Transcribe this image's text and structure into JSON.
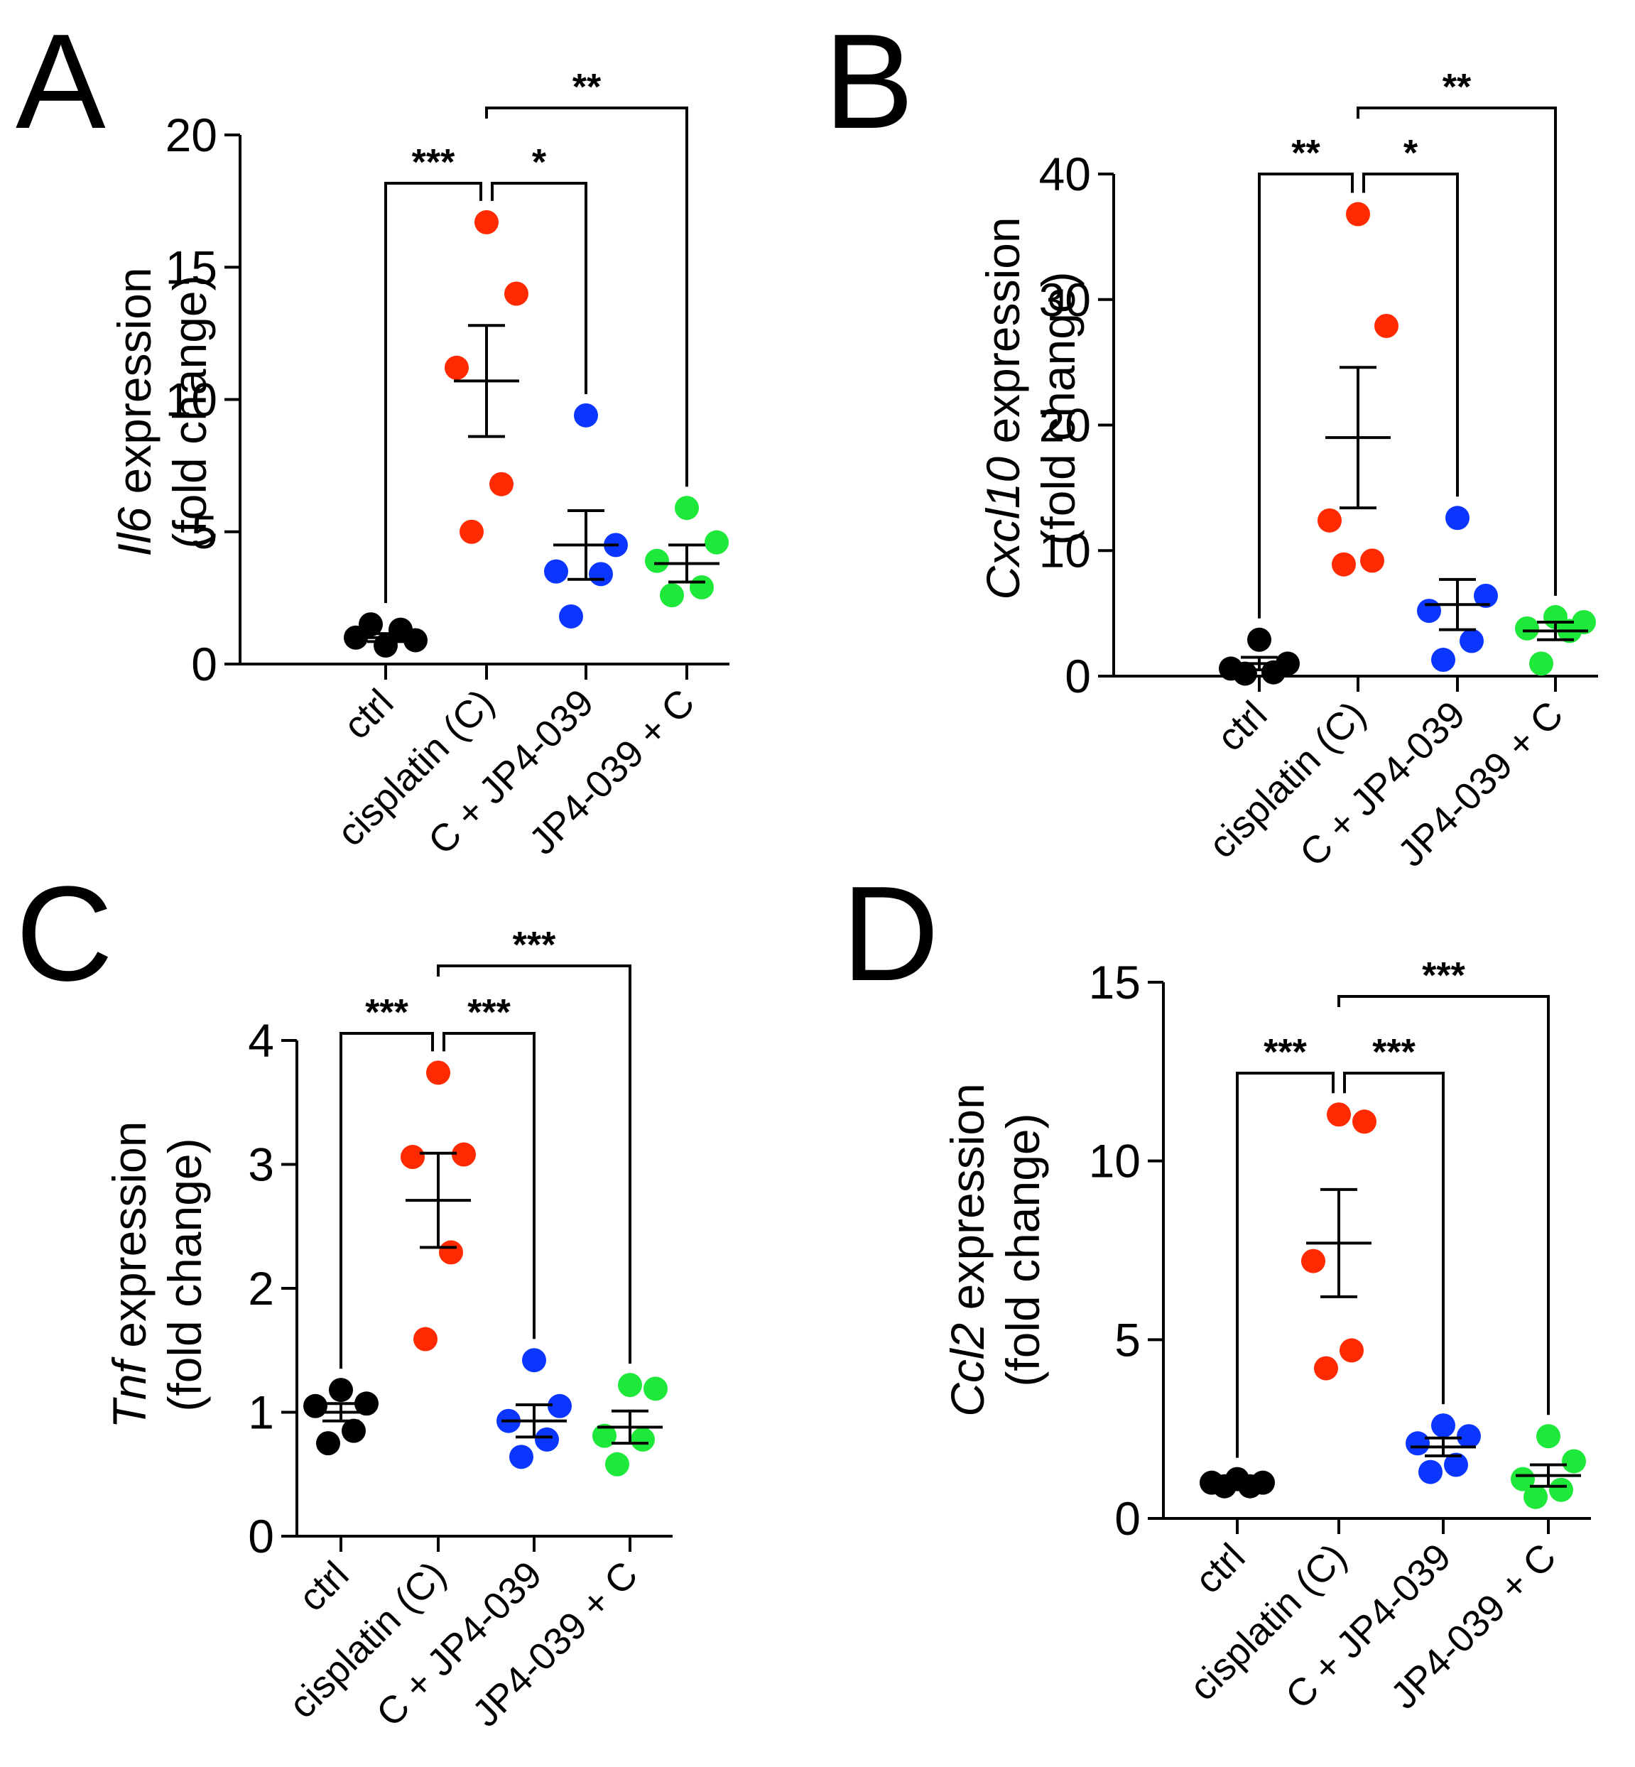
{
  "figure": {
    "panels": [
      "A",
      "B",
      "C",
      "D"
    ]
  },
  "colors": {
    "ctrl": "#000000",
    "cisplatin (C)": "#ff2a00",
    "C + JP4-039": "#0a36ff",
    "JP4-039 + C": "#1ee83a"
  },
  "chart_data": [
    {
      "panel": "A",
      "type": "scatter",
      "ylabel_gene": "Il6",
      "ylabel_rest": "expression",
      "ylabel_line2": "(fold change)",
      "ylim": [
        0,
        20
      ],
      "yticks": [
        0,
        5,
        10,
        15,
        20
      ],
      "categories": [
        "ctrl",
        "cisplatin (C)",
        "C + JP4-039",
        "JP4-039 + C"
      ],
      "groups": [
        {
          "name": "ctrl",
          "points": [
            0.7,
            0.9,
            1.0,
            1.3,
            1.5
          ],
          "mean": 1.0,
          "sem": 0.15
        },
        {
          "name": "cisplatin (C)",
          "points": [
            16.7,
            14.0,
            11.2,
            6.8,
            5.0
          ],
          "mean": 10.7,
          "sem": 2.1
        },
        {
          "name": "C + JP4-039",
          "points": [
            9.4,
            4.5,
            3.5,
            3.4,
            1.8
          ],
          "mean": 4.5,
          "sem": 1.3
        },
        {
          "name": "JP4-039 + C",
          "points": [
            5.9,
            4.6,
            3.9,
            2.9,
            2.6
          ],
          "mean": 3.8,
          "sem": 0.7
        }
      ],
      "comparisons": [
        {
          "from": "ctrl",
          "to": "cisplatin (C)",
          "label": "***"
        },
        {
          "from": "cisplatin (C)",
          "to": "C + JP4-039",
          "label": "*"
        },
        {
          "from": "cisplatin (C)",
          "to": "JP4-039 + C",
          "label": "**"
        }
      ]
    },
    {
      "panel": "B",
      "type": "scatter",
      "ylabel_gene": "Cxcl10",
      "ylabel_rest": "expression",
      "ylabel_line2": "(fold change)",
      "ylim": [
        0,
        40
      ],
      "yticks": [
        0,
        10,
        20,
        30,
        40
      ],
      "categories": [
        "ctrl",
        "cisplatin (C)",
        "C + JP4-039",
        "JP4-039 + C"
      ],
      "groups": [
        {
          "name": "ctrl",
          "points": [
            2.9,
            1.0,
            0.6,
            0.3,
            0.2
          ],
          "mean": 1.0,
          "sem": 0.5
        },
        {
          "name": "cisplatin (C)",
          "points": [
            36.8,
            27.9,
            12.4,
            9.2,
            8.9
          ],
          "mean": 19.0,
          "sem": 5.6
        },
        {
          "name": "C + JP4-039",
          "points": [
            12.6,
            6.4,
            5.2,
            2.8,
            1.3
          ],
          "mean": 5.7,
          "sem": 2.0
        },
        {
          "name": "JP4-039 + C",
          "points": [
            4.7,
            4.3,
            3.8,
            3.6,
            1.0
          ],
          "mean": 3.6,
          "sem": 0.7
        }
      ],
      "comparisons": [
        {
          "from": "ctrl",
          "to": "cisplatin (C)",
          "label": "**"
        },
        {
          "from": "cisplatin (C)",
          "to": "C + JP4-039",
          "label": "*"
        },
        {
          "from": "cisplatin (C)",
          "to": "JP4-039 + C",
          "label": "**"
        }
      ]
    },
    {
      "panel": "C",
      "type": "scatter",
      "ylabel_gene": "Tnf",
      "ylabel_rest": "expression",
      "ylabel_line2": "(fold change)",
      "ylim": [
        0,
        4
      ],
      "yticks": [
        0,
        1,
        2,
        3,
        4
      ],
      "categories": [
        "ctrl",
        "cisplatin (C)",
        "C + JP4-039",
        "JP4-039 + C"
      ],
      "groups": [
        {
          "name": "ctrl",
          "points": [
            1.18,
            1.07,
            1.05,
            0.85,
            0.75
          ],
          "mean": 1.0,
          "sem": 0.07
        },
        {
          "name": "cisplatin (C)",
          "points": [
            3.74,
            3.08,
            3.06,
            2.29,
            1.59
          ],
          "mean": 2.71,
          "sem": 0.38
        },
        {
          "name": "C + JP4-039",
          "points": [
            1.42,
            1.05,
            0.93,
            0.78,
            0.64
          ],
          "mean": 0.93,
          "sem": 0.13
        },
        {
          "name": "JP4-039 + C",
          "points": [
            1.22,
            1.19,
            0.81,
            0.78,
            0.58
          ],
          "mean": 0.88,
          "sem": 0.13
        }
      ],
      "comparisons": [
        {
          "from": "ctrl",
          "to": "cisplatin (C)",
          "label": "***"
        },
        {
          "from": "cisplatin (C)",
          "to": "C + JP4-039",
          "label": "***"
        },
        {
          "from": "cisplatin (C)",
          "to": "JP4-039 + C",
          "label": "***"
        }
      ]
    },
    {
      "panel": "D",
      "type": "scatter",
      "ylabel_gene": "Ccl2",
      "ylabel_rest": "expression",
      "ylabel_line2": "(fold change)",
      "ylim": [
        0,
        15
      ],
      "yticks": [
        0,
        5,
        10,
        15
      ],
      "categories": [
        "ctrl",
        "cisplatin (C)",
        "C + JP4-039",
        "JP4-039 + C"
      ],
      "groups": [
        {
          "name": "ctrl",
          "points": [
            1.1,
            1.0,
            1.0,
            0.9,
            0.9
          ],
          "mean": 1.0,
          "sem": 0.05
        },
        {
          "name": "cisplatin (C)",
          "points": [
            11.3,
            11.1,
            7.2,
            4.7,
            4.2
          ],
          "mean": 7.7,
          "sem": 1.5
        },
        {
          "name": "C + JP4-039",
          "points": [
            2.6,
            2.3,
            2.1,
            1.5,
            1.3
          ],
          "mean": 2.0,
          "sem": 0.25
        },
        {
          "name": "JP4-039 + C",
          "points": [
            2.3,
            1.6,
            1.1,
            0.8,
            0.6
          ],
          "mean": 1.2,
          "sem": 0.3
        }
      ],
      "comparisons": [
        {
          "from": "ctrl",
          "to": "cisplatin (C)",
          "label": "***"
        },
        {
          "from": "cisplatin (C)",
          "to": "C + JP4-039",
          "label": "***"
        },
        {
          "from": "cisplatin (C)",
          "to": "JP4-039 + C",
          "label": "***"
        }
      ]
    }
  ]
}
